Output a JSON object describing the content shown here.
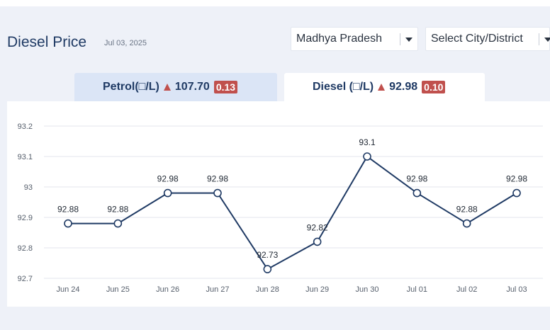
{
  "header": {
    "title": "Diesel Price",
    "date": "Jul 03, 2025"
  },
  "filters": {
    "state": "Madhya Pradesh",
    "city": "Select City/District"
  },
  "tabs": [
    {
      "label": "Petrol(□/L)",
      "price": "107.70",
      "change": "0.13",
      "trend_icon": "up-triangle-icon",
      "active": false
    },
    {
      "label": "Diesel (□/L)",
      "price": "92.98",
      "change": "0.10",
      "trend_icon": "up-triangle-icon",
      "active": true
    }
  ],
  "colors": {
    "title": "#1f3a64",
    "line": "#1f3a64",
    "badge": "#c0504d",
    "active_tab": "#ffffff",
    "inactive_tab": "#dbe5f6"
  },
  "chart_data": {
    "type": "line",
    "title": "",
    "xlabel": "",
    "ylabel": "",
    "categories": [
      "Jun 24",
      "Jun 25",
      "Jun 26",
      "Jun 27",
      "Jun 28",
      "Jun 29",
      "Jun 30",
      "Jul 01",
      "Jul 02",
      "Jul 03"
    ],
    "values": [
      92.88,
      92.88,
      92.98,
      92.98,
      92.73,
      92.82,
      93.1,
      92.98,
      92.88,
      92.98
    ],
    "data_labels": [
      "92.88",
      "92.88",
      "92.98",
      "92.98",
      "92.73",
      "92.82",
      "93.1",
      "92.98",
      "92.88",
      "92.98"
    ],
    "yticks": [
      "92.7",
      "92.8",
      "92.9",
      "93",
      "93.1",
      "93.2"
    ],
    "ylim": [
      92.7,
      93.2
    ],
    "grid": true,
    "legend": "none"
  }
}
